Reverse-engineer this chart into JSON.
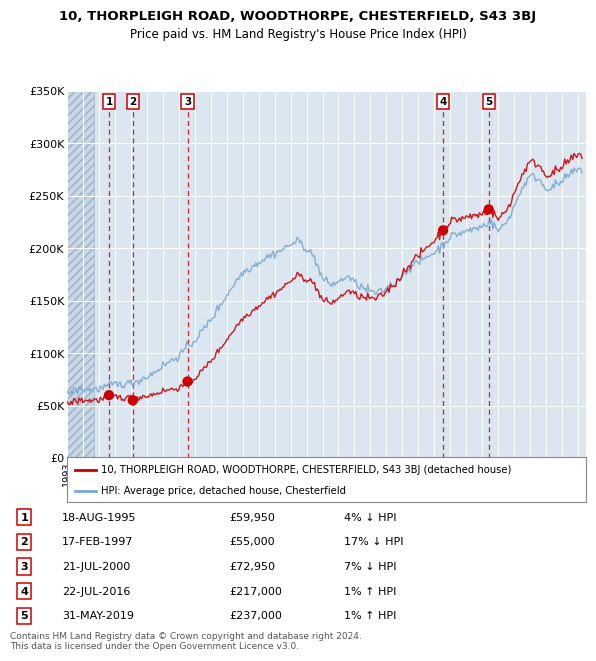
{
  "title_line1": "10, THORPLEIGH ROAD, WOODTHORPE, CHESTERFIELD, S43 3BJ",
  "title_line2": "Price paid vs. HM Land Registry's House Price Index (HPI)",
  "ylim": [
    0,
    350000
  ],
  "yticks": [
    0,
    50000,
    100000,
    150000,
    200000,
    250000,
    300000,
    350000
  ],
  "ytick_labels": [
    "£0",
    "£50K",
    "£100K",
    "£150K",
    "£200K",
    "£250K",
    "£300K",
    "£350K"
  ],
  "xlim_start": 1993.0,
  "xlim_end": 2025.5,
  "background_color": "#ffffff",
  "plot_bg_color": "#dce6f1",
  "hatch_color": "#b8c8da",
  "grid_color": "#ffffff",
  "sale_dates": [
    1995.63,
    1997.12,
    2000.55,
    2016.55,
    2019.41
  ],
  "sale_prices": [
    59950,
    55000,
    72950,
    217000,
    237000
  ],
  "sale_labels": [
    "1",
    "2",
    "3",
    "4",
    "5"
  ],
  "sale_info": [
    {
      "label": "1",
      "date": "18-AUG-1995",
      "price": "£59,950",
      "hpi_diff": "4% ↓ HPI"
    },
    {
      "label": "2",
      "date": "17-FEB-1997",
      "price": "£55,000",
      "hpi_diff": "17% ↓ HPI"
    },
    {
      "label": "3",
      "date": "21-JUL-2000",
      "price": "£72,950",
      "hpi_diff": "7% ↓ HPI"
    },
    {
      "label": "4",
      "date": "22-JUL-2016",
      "price": "£217,000",
      "hpi_diff": "1% ↑ HPI"
    },
    {
      "label": "5",
      "date": "31-MAY-2019",
      "price": "£237,000",
      "hpi_diff": "1% ↑ HPI"
    }
  ],
  "property_line_color": "#cc0000",
  "hpi_line_color": "#7aa8d0",
  "dot_color": "#cc0000",
  "vline_color": "#cc0000",
  "legend_label_property": "10, THORPLEIGH ROAD, WOODTHORPE, CHESTERFIELD, S43 3BJ (detached house)",
  "legend_label_hpi": "HPI: Average price, detached house, Chesterfield",
  "footnote": "Contains HM Land Registry data © Crown copyright and database right 2024.\nThis data is licensed under the Open Government Licence v3.0."
}
